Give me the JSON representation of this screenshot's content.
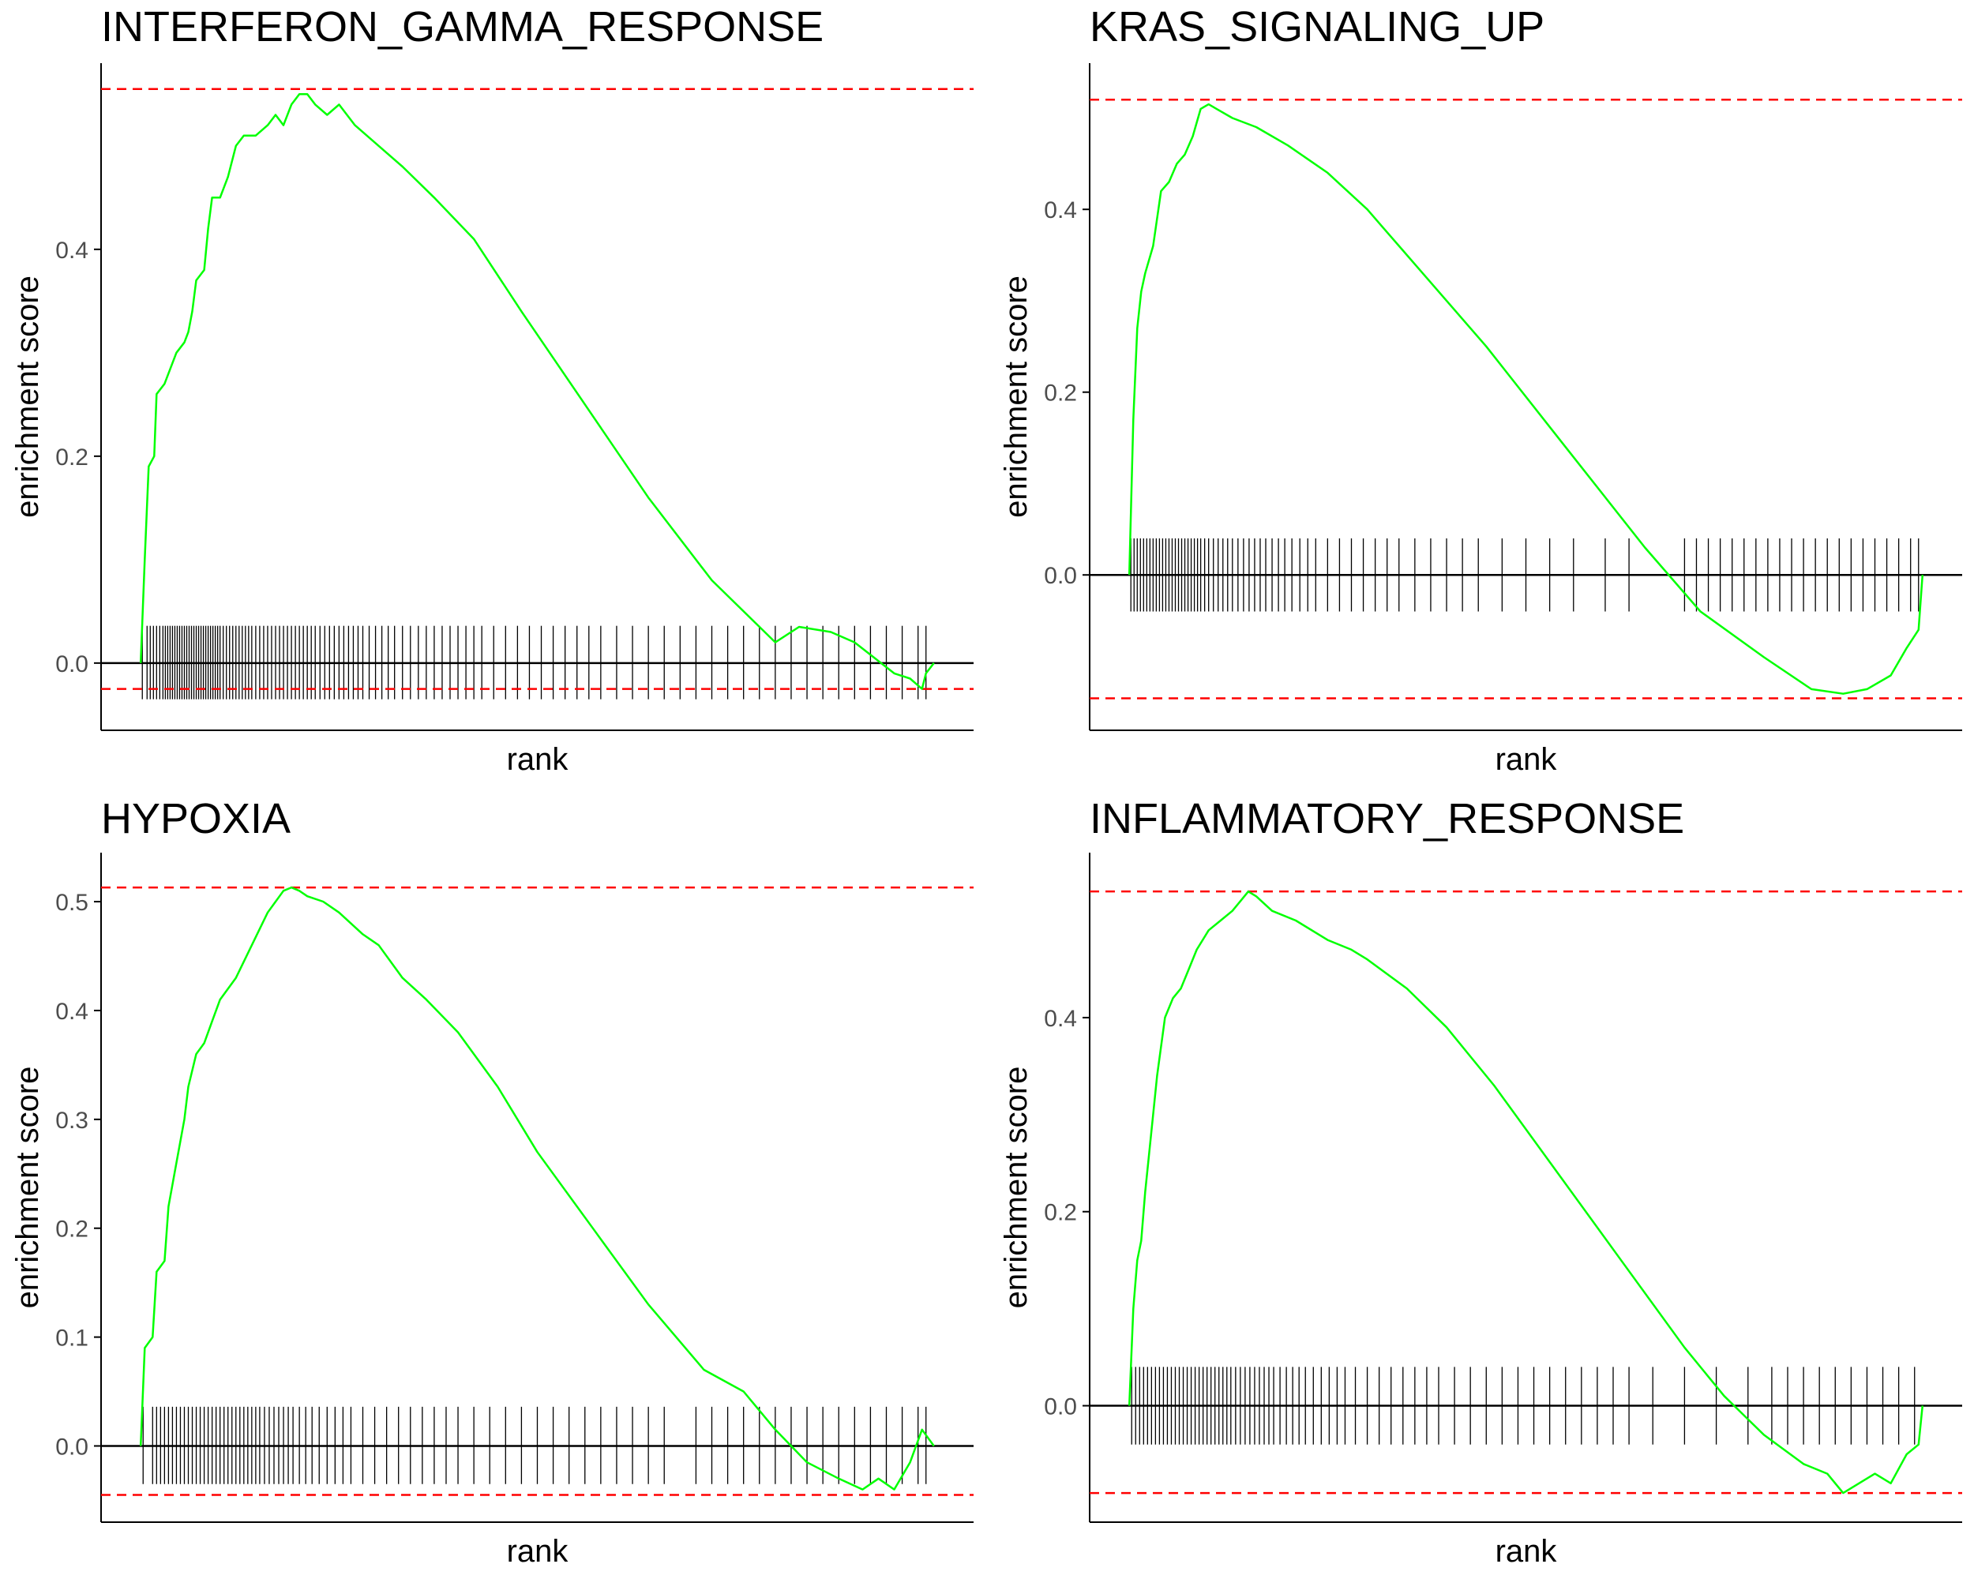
{
  "colors": {
    "curve": "#00ff00",
    "hit": "#000000",
    "max_line": "#ff0000",
    "zero_line": "#000000",
    "axis": "#000000",
    "tick_text": "#4d4d4d"
  },
  "chart_data": [
    {
      "type": "line",
      "title": "INTERFERON_GAMMA_RESPONSE",
      "xlabel": "rank",
      "ylabel": "enrichment score",
      "ylim": [
        -0.065,
        0.58
      ],
      "xlim": [
        -0.05,
        1.05
      ],
      "yticks": [
        0.0,
        0.2,
        0.4
      ],
      "tick_labels": [
        "0.0",
        "0.2",
        "0.4"
      ],
      "dashed_lines": [
        0.555,
        -0.025
      ],
      "hit_band": [
        -0.035,
        0.036
      ],
      "curve": [
        [
          0.0,
          0.0
        ],
        [
          0.005,
          0.1
        ],
        [
          0.01,
          0.19
        ],
        [
          0.017,
          0.2
        ],
        [
          0.02,
          0.26
        ],
        [
          0.03,
          0.27
        ],
        [
          0.045,
          0.3
        ],
        [
          0.055,
          0.31
        ],
        [
          0.06,
          0.32
        ],
        [
          0.065,
          0.34
        ],
        [
          0.07,
          0.37
        ],
        [
          0.08,
          0.38
        ],
        [
          0.085,
          0.42
        ],
        [
          0.09,
          0.45
        ],
        [
          0.1,
          0.45
        ],
        [
          0.11,
          0.47
        ],
        [
          0.12,
          0.5
        ],
        [
          0.13,
          0.51
        ],
        [
          0.145,
          0.51
        ],
        [
          0.16,
          0.52
        ],
        [
          0.17,
          0.53
        ],
        [
          0.18,
          0.52
        ],
        [
          0.19,
          0.54
        ],
        [
          0.2,
          0.55
        ],
        [
          0.21,
          0.55
        ],
        [
          0.22,
          0.54
        ],
        [
          0.235,
          0.53
        ],
        [
          0.25,
          0.54
        ],
        [
          0.27,
          0.52
        ],
        [
          0.3,
          0.5
        ],
        [
          0.33,
          0.48
        ],
        [
          0.37,
          0.45
        ],
        [
          0.42,
          0.41
        ],
        [
          0.48,
          0.34
        ],
        [
          0.56,
          0.25
        ],
        [
          0.64,
          0.16
        ],
        [
          0.72,
          0.08
        ],
        [
          0.8,
          0.02
        ],
        [
          0.83,
          0.035
        ],
        [
          0.87,
          0.03
        ],
        [
          0.9,
          0.02
        ],
        [
          0.95,
          -0.01
        ],
        [
          0.97,
          -0.015
        ],
        [
          0.985,
          -0.025
        ],
        [
          0.99,
          -0.01
        ],
        [
          1.0,
          0.0
        ]
      ],
      "hits": [
        0.002,
        0.008,
        0.012,
        0.016,
        0.02,
        0.024,
        0.028,
        0.031,
        0.034,
        0.037,
        0.04,
        0.043,
        0.046,
        0.049,
        0.052,
        0.055,
        0.058,
        0.061,
        0.064,
        0.067,
        0.07,
        0.073,
        0.076,
        0.079,
        0.082,
        0.085,
        0.088,
        0.091,
        0.094,
        0.097,
        0.1,
        0.104,
        0.108,
        0.112,
        0.116,
        0.12,
        0.124,
        0.128,
        0.132,
        0.136,
        0.14,
        0.145,
        0.15,
        0.155,
        0.16,
        0.165,
        0.17,
        0.175,
        0.18,
        0.185,
        0.19,
        0.195,
        0.2,
        0.205,
        0.21,
        0.215,
        0.22,
        0.226,
        0.232,
        0.238,
        0.244,
        0.25,
        0.256,
        0.262,
        0.268,
        0.274,
        0.28,
        0.288,
        0.296,
        0.304,
        0.312,
        0.32,
        0.33,
        0.34,
        0.35,
        0.36,
        0.37,
        0.38,
        0.39,
        0.4,
        0.41,
        0.42,
        0.43,
        0.445,
        0.46,
        0.475,
        0.49,
        0.505,
        0.52,
        0.535,
        0.55,
        0.565,
        0.58,
        0.6,
        0.62,
        0.64,
        0.66,
        0.68,
        0.7,
        0.72,
        0.74,
        0.76,
        0.78,
        0.8,
        0.82,
        0.84,
        0.86,
        0.88,
        0.9,
        0.92,
        0.94,
        0.96,
        0.98,
        0.99
      ]
    },
    {
      "type": "line",
      "title": "KRAS_SIGNALING_UP",
      "xlabel": "rank",
      "ylabel": "enrichment score",
      "ylim": [
        -0.17,
        0.56
      ],
      "xlim": [
        -0.05,
        1.05
      ],
      "yticks": [
        0.0,
        0.2,
        0.4
      ],
      "tick_labels": [
        "0.0",
        "0.2",
        "0.4"
      ],
      "dashed_lines": [
        0.52,
        -0.135
      ],
      "hit_band": [
        -0.04,
        0.04
      ],
      "curve": [
        [
          0.0,
          0.0
        ],
        [
          0.005,
          0.17
        ],
        [
          0.01,
          0.27
        ],
        [
          0.015,
          0.31
        ],
        [
          0.02,
          0.33
        ],
        [
          0.03,
          0.36
        ],
        [
          0.04,
          0.42
        ],
        [
          0.05,
          0.43
        ],
        [
          0.06,
          0.45
        ],
        [
          0.07,
          0.46
        ],
        [
          0.08,
          0.48
        ],
        [
          0.09,
          0.51
        ],
        [
          0.1,
          0.515
        ],
        [
          0.11,
          0.51
        ],
        [
          0.13,
          0.5
        ],
        [
          0.16,
          0.49
        ],
        [
          0.2,
          0.47
        ],
        [
          0.25,
          0.44
        ],
        [
          0.3,
          0.4
        ],
        [
          0.32,
          0.38
        ],
        [
          0.36,
          0.34
        ],
        [
          0.45,
          0.25
        ],
        [
          0.55,
          0.14
        ],
        [
          0.65,
          0.03
        ],
        [
          0.72,
          -0.04
        ],
        [
          0.8,
          -0.09
        ],
        [
          0.86,
          -0.125
        ],
        [
          0.9,
          -0.13
        ],
        [
          0.93,
          -0.125
        ],
        [
          0.96,
          -0.11
        ],
        [
          0.98,
          -0.08
        ],
        [
          0.995,
          -0.06
        ],
        [
          1.0,
          0.0
        ]
      ],
      "hits": [
        0.002,
        0.006,
        0.01,
        0.014,
        0.018,
        0.022,
        0.026,
        0.03,
        0.034,
        0.038,
        0.042,
        0.046,
        0.05,
        0.054,
        0.058,
        0.062,
        0.066,
        0.07,
        0.074,
        0.078,
        0.082,
        0.086,
        0.09,
        0.095,
        0.1,
        0.106,
        0.112,
        0.118,
        0.124,
        0.13,
        0.137,
        0.144,
        0.151,
        0.158,
        0.165,
        0.172,
        0.18,
        0.188,
        0.196,
        0.205,
        0.215,
        0.225,
        0.235,
        0.25,
        0.265,
        0.28,
        0.295,
        0.31,
        0.325,
        0.34,
        0.36,
        0.38,
        0.4,
        0.42,
        0.44,
        0.47,
        0.5,
        0.53,
        0.56,
        0.6,
        0.63,
        0.7,
        0.715,
        0.73,
        0.745,
        0.76,
        0.775,
        0.79,
        0.805,
        0.82,
        0.835,
        0.85,
        0.865,
        0.88,
        0.895,
        0.91,
        0.925,
        0.94,
        0.955,
        0.97,
        0.985,
        0.995
      ]
    },
    {
      "type": "line",
      "title": "HYPOXIA",
      "xlabel": "rank",
      "ylabel": "enrichment score",
      "ylim": [
        -0.07,
        0.545
      ],
      "xlim": [
        -0.05,
        1.05
      ],
      "yticks": [
        0.0,
        0.1,
        0.2,
        0.3,
        0.4,
        0.5
      ],
      "tick_labels": [
        "0.0",
        "0.1",
        "0.2",
        "0.3",
        "0.4",
        "0.5"
      ],
      "dashed_lines": [
        0.513,
        -0.045
      ],
      "hit_band": [
        -0.035,
        0.036
      ],
      "curve": [
        [
          0.0,
          0.0
        ],
        [
          0.005,
          0.09
        ],
        [
          0.015,
          0.1
        ],
        [
          0.02,
          0.16
        ],
        [
          0.03,
          0.17
        ],
        [
          0.035,
          0.22
        ],
        [
          0.045,
          0.26
        ],
        [
          0.055,
          0.3
        ],
        [
          0.06,
          0.33
        ],
        [
          0.07,
          0.36
        ],
        [
          0.08,
          0.37
        ],
        [
          0.09,
          0.39
        ],
        [
          0.1,
          0.41
        ],
        [
          0.12,
          0.43
        ],
        [
          0.14,
          0.46
        ],
        [
          0.16,
          0.49
        ],
        [
          0.18,
          0.51
        ],
        [
          0.19,
          0.513
        ],
        [
          0.2,
          0.51
        ],
        [
          0.21,
          0.505
        ],
        [
          0.23,
          0.5
        ],
        [
          0.25,
          0.49
        ],
        [
          0.28,
          0.47
        ],
        [
          0.3,
          0.46
        ],
        [
          0.33,
          0.43
        ],
        [
          0.36,
          0.41
        ],
        [
          0.4,
          0.38
        ],
        [
          0.45,
          0.33
        ],
        [
          0.5,
          0.27
        ],
        [
          0.57,
          0.2
        ],
        [
          0.64,
          0.13
        ],
        [
          0.71,
          0.07
        ],
        [
          0.76,
          0.05
        ],
        [
          0.8,
          0.015
        ],
        [
          0.84,
          -0.015
        ],
        [
          0.88,
          -0.03
        ],
        [
          0.91,
          -0.04
        ],
        [
          0.93,
          -0.03
        ],
        [
          0.95,
          -0.04
        ],
        [
          0.97,
          -0.015
        ],
        [
          0.985,
          0.015
        ],
        [
          1.0,
          0.0
        ]
      ],
      "hits": [
        0.003,
        0.015,
        0.02,
        0.025,
        0.03,
        0.035,
        0.04,
        0.045,
        0.05,
        0.055,
        0.06,
        0.065,
        0.07,
        0.075,
        0.08,
        0.085,
        0.09,
        0.095,
        0.1,
        0.105,
        0.11,
        0.115,
        0.12,
        0.125,
        0.13,
        0.135,
        0.14,
        0.145,
        0.15,
        0.156,
        0.162,
        0.168,
        0.174,
        0.18,
        0.186,
        0.192,
        0.2,
        0.208,
        0.216,
        0.225,
        0.235,
        0.245,
        0.255,
        0.265,
        0.28,
        0.295,
        0.31,
        0.325,
        0.34,
        0.355,
        0.37,
        0.385,
        0.4,
        0.42,
        0.44,
        0.46,
        0.48,
        0.5,
        0.52,
        0.54,
        0.56,
        0.58,
        0.6,
        0.62,
        0.64,
        0.66,
        0.7,
        0.72,
        0.74,
        0.76,
        0.78,
        0.8,
        0.82,
        0.84,
        0.86,
        0.88,
        0.9,
        0.92,
        0.94,
        0.96,
        0.98,
        0.99
      ]
    },
    {
      "type": "line",
      "title": "INFLAMMATORY_RESPONSE",
      "xlabel": "rank",
      "ylabel": "enrichment score",
      "ylim": [
        -0.12,
        0.57
      ],
      "xlim": [
        -0.05,
        1.05
      ],
      "yticks": [
        0.0,
        0.2,
        0.4
      ],
      "tick_labels": [
        "0.0",
        "0.2",
        "0.4"
      ],
      "dashed_lines": [
        0.53,
        -0.09
      ],
      "hit_band": [
        -0.04,
        0.04
      ],
      "curve": [
        [
          0.0,
          0.0
        ],
        [
          0.005,
          0.1
        ],
        [
          0.01,
          0.15
        ],
        [
          0.015,
          0.17
        ],
        [
          0.02,
          0.22
        ],
        [
          0.03,
          0.3
        ],
        [
          0.035,
          0.34
        ],
        [
          0.045,
          0.4
        ],
        [
          0.055,
          0.42
        ],
        [
          0.065,
          0.43
        ],
        [
          0.075,
          0.45
        ],
        [
          0.085,
          0.47
        ],
        [
          0.1,
          0.49
        ],
        [
          0.115,
          0.5
        ],
        [
          0.13,
          0.51
        ],
        [
          0.14,
          0.52
        ],
        [
          0.15,
          0.53
        ],
        [
          0.16,
          0.525
        ],
        [
          0.18,
          0.51
        ],
        [
          0.21,
          0.5
        ],
        [
          0.25,
          0.48
        ],
        [
          0.28,
          0.47
        ],
        [
          0.3,
          0.46
        ],
        [
          0.35,
          0.43
        ],
        [
          0.4,
          0.39
        ],
        [
          0.46,
          0.33
        ],
        [
          0.54,
          0.24
        ],
        [
          0.62,
          0.15
        ],
        [
          0.7,
          0.06
        ],
        [
          0.75,
          0.01
        ],
        [
          0.8,
          -0.03
        ],
        [
          0.85,
          -0.06
        ],
        [
          0.88,
          -0.07
        ],
        [
          0.9,
          -0.09
        ],
        [
          0.92,
          -0.08
        ],
        [
          0.94,
          -0.07
        ],
        [
          0.96,
          -0.08
        ],
        [
          0.98,
          -0.05
        ],
        [
          0.995,
          -0.04
        ],
        [
          1.0,
          0.0
        ]
      ],
      "hits": [
        0.003,
        0.008,
        0.013,
        0.018,
        0.023,
        0.028,
        0.033,
        0.038,
        0.043,
        0.048,
        0.053,
        0.058,
        0.063,
        0.068,
        0.073,
        0.078,
        0.083,
        0.088,
        0.093,
        0.098,
        0.103,
        0.108,
        0.113,
        0.118,
        0.123,
        0.128,
        0.134,
        0.14,
        0.146,
        0.152,
        0.158,
        0.164,
        0.17,
        0.176,
        0.182,
        0.19,
        0.198,
        0.206,
        0.214,
        0.222,
        0.232,
        0.242,
        0.252,
        0.262,
        0.272,
        0.285,
        0.3,
        0.315,
        0.33,
        0.345,
        0.36,
        0.375,
        0.39,
        0.41,
        0.43,
        0.45,
        0.47,
        0.49,
        0.51,
        0.53,
        0.55,
        0.57,
        0.59,
        0.61,
        0.63,
        0.66,
        0.7,
        0.74,
        0.78,
        0.81,
        0.83,
        0.85,
        0.87,
        0.89,
        0.91,
        0.93,
        0.95,
        0.97,
        0.99
      ]
    }
  ]
}
